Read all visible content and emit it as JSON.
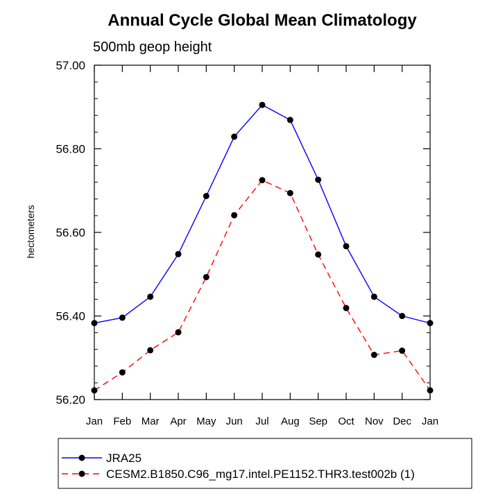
{
  "chart_data": {
    "type": "line",
    "title": "Annual Cycle Global Mean Climatology",
    "subtitle": "500mb geop height",
    "xlabel": "",
    "ylabel": "hectometers",
    "categories": [
      "Jan",
      "Feb",
      "Mar",
      "Apr",
      "May",
      "Jun",
      "Jul",
      "Aug",
      "Sep",
      "Oct",
      "Nov",
      "Dec",
      "Jan"
    ],
    "ylim": [
      56.2,
      57.0
    ],
    "yticks": [
      "56.20",
      "56.40",
      "56.60",
      "56.80",
      "57.00"
    ],
    "grid": false,
    "legend_position": "bottom",
    "series": [
      {
        "name": "JRA25",
        "color": "#0000ff",
        "dash": "solid",
        "values": [
          56.383,
          56.396,
          56.446,
          56.548,
          56.687,
          56.829,
          56.905,
          56.869,
          56.726,
          56.567,
          56.446,
          56.4,
          56.383
        ]
      },
      {
        "name": "CESM2.B1850.C96_mg17.intel.PE1152.THR3.test002b (1)",
        "color": "#ff0000",
        "dash": "dashed",
        "values": [
          56.222,
          56.265,
          56.318,
          56.361,
          56.493,
          56.641,
          56.725,
          56.694,
          56.547,
          56.419,
          56.307,
          56.317,
          56.222
        ]
      }
    ]
  }
}
